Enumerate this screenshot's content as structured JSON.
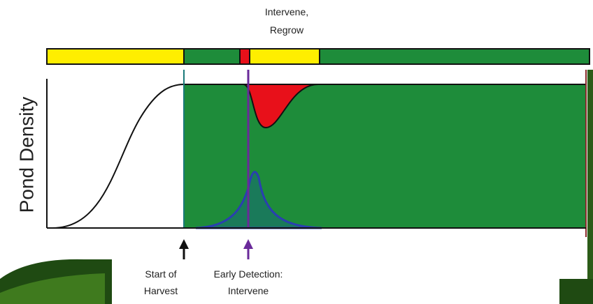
{
  "annotations": {
    "intervene_regrow": [
      "Intervene,",
      "Regrow"
    ],
    "y_axis_label": "Pond Density",
    "start_of_harvest": [
      "Start of",
      "Harvest"
    ],
    "early_detection": [
      "Early Detection:",
      "Intervene"
    ]
  }
}
